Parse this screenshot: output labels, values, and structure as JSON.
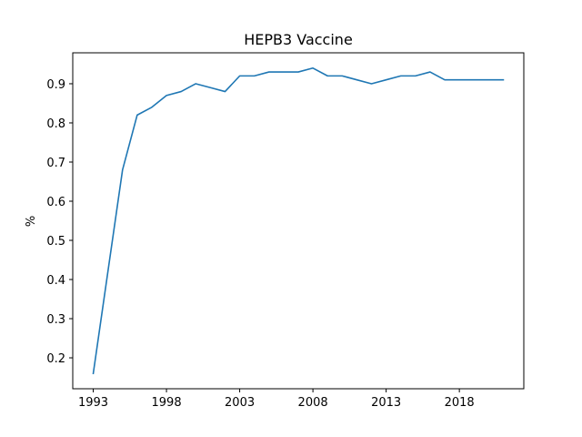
{
  "chart_data": {
    "type": "line",
    "title": "HEPB3 Vaccine",
    "xlabel": "",
    "ylabel": "%",
    "xlim": [
      1991.6,
      2022.4
    ],
    "ylim": [
      0.121,
      0.979
    ],
    "grid": false,
    "x_ticks": [
      1993,
      1998,
      2003,
      2008,
      2013,
      2018
    ],
    "y_ticks": [
      0.2,
      0.3,
      0.4,
      0.5,
      0.6,
      0.7,
      0.8,
      0.9
    ],
    "x_tick_labels": [
      "1993",
      "1998",
      "2003",
      "2008",
      "2013",
      "2018"
    ],
    "y_tick_labels": [
      "0.2",
      "0.3",
      "0.4",
      "0.5",
      "0.6",
      "0.7",
      "0.8",
      "0.9"
    ],
    "color": "#1f77b4",
    "series": [
      {
        "x": [
          1993,
          1994,
          1995,
          1996,
          1997,
          1998,
          1999,
          2000,
          2001,
          2002,
          2003,
          2004,
          2005,
          2006,
          2007,
          2008,
          2009,
          2010,
          2011,
          2012,
          2013,
          2014,
          2015,
          2016,
          2017,
          2018,
          2019,
          2020,
          2021
        ],
        "values": [
          0.16,
          0.42,
          0.68,
          0.82,
          0.84,
          0.87,
          0.88,
          0.9,
          0.89,
          0.88,
          0.92,
          0.92,
          0.93,
          0.93,
          0.93,
          0.94,
          0.92,
          0.92,
          0.91,
          0.9,
          0.91,
          0.92,
          0.92,
          0.93,
          0.91,
          0.91,
          0.91,
          0.91,
          0.91
        ]
      }
    ]
  }
}
